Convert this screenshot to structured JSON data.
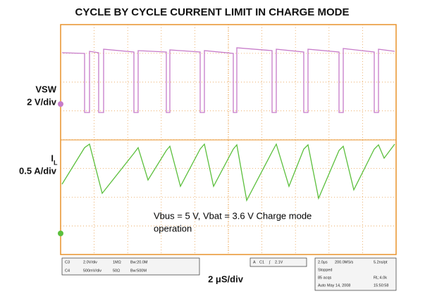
{
  "title": "CYCLE BY CYCLE CURRENT LIMIT IN CHARGE MODE",
  "channels": [
    {
      "name": "VSW",
      "scale": "2 V/div"
    },
    {
      "name": "I",
      "subscript": "L",
      "scale": "0.5 A/div"
    }
  ],
  "annotation": [
    "Vbus = 5 V, Vbat = 3.6 V Charge mode",
    "operation"
  ],
  "timebase": "2 μS/div",
  "status": {
    "channel_settings": [
      [
        "C3",
        "2.0V/div",
        "1MΩ",
        "Bw:20.0M"
      ],
      [
        "C4",
        "500mV/div",
        "50Ω",
        "Bw:500M"
      ]
    ],
    "trigger": [
      "A",
      "C1",
      "∫",
      "2.1V"
    ],
    "acquisition": [
      [
        "2.0μs",
        "200.0MS/s",
        "5.2ns/pt"
      ],
      [
        "Stopped"
      ],
      [
        "85 acqs",
        "RL:4.0k"
      ],
      [
        "Auto",
        "May 14, 2008",
        "15:50:58"
      ]
    ]
  }
}
